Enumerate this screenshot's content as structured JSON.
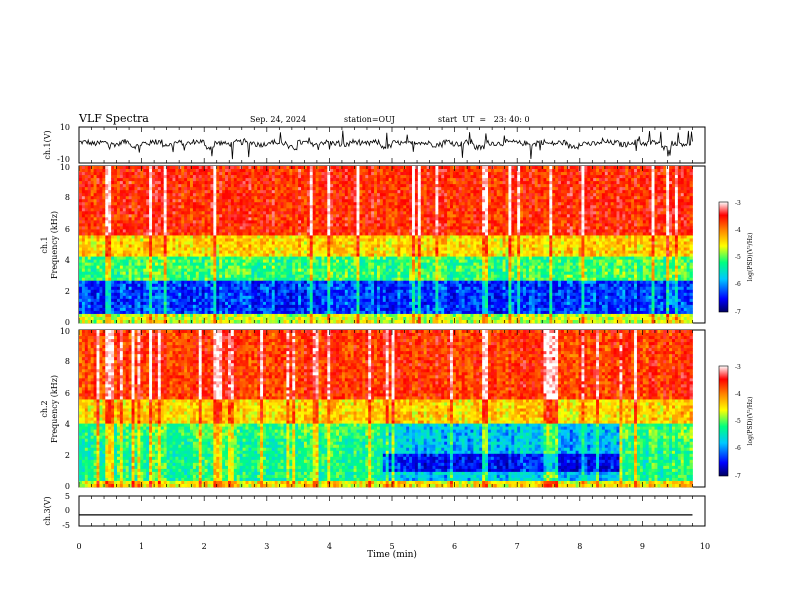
{
  "header": {
    "title": "VLF Spectra",
    "date": "Sep. 24, 2024",
    "station": "station=OUJ",
    "start": "start  UT  =   23: 40: 0"
  },
  "chart_data": [
    {
      "type": "line",
      "panel": "waveform-ch1",
      "ylabel": "ch.1(V)",
      "ylim": [
        -10,
        10
      ],
      "y_ticks": [
        "10",
        "-10"
      ],
      "series": [
        {
          "values": [
            3.2,
            1.5,
            2.8,
            0.9,
            3.6,
            -1.2,
            2.1,
            3.4,
            0.4,
            2.6,
            1.8,
            3.9,
            -2.4,
            2.2,
            1.1,
            3.1,
            2.5,
            0.7,
            3.3,
            1.9,
            -3.1,
            2.7,
            1.4,
            3.0,
            2.2,
            0.2,
            3.5,
            1.6,
            2.9,
            -1.8,
            2.4,
            1.2,
            3.2,
            2.0,
            0.5,
            3.7,
            1.3,
            2.8,
            -2.9,
            2.3,
            1.7,
            3.0,
            2.1,
            0.8,
            3.4,
            1.5,
            2.6,
            -1.5,
            2.0,
            1.0,
            3.1,
            2.4,
            0.6,
            3.3,
            1.8,
            2.7,
            -3.5,
            2.2,
            1.4,
            3.6
          ]
        }
      ]
    },
    {
      "type": "heatmap",
      "panel": "spectrogram-ch1",
      "ylabel": "ch.1\nFrequency  (kHz)",
      "ylim": [
        0,
        10
      ],
      "y_ticks": [
        "0",
        "2",
        "4",
        "6",
        "8",
        "10"
      ],
      "colorbar": {
        "label": "log(PSD)(V²/Hz)",
        "range": [
          -7,
          -3
        ],
        "ticks": [
          "-3",
          "-4",
          "-5",
          "-6",
          "-7"
        ]
      }
    },
    {
      "type": "heatmap",
      "panel": "spectrogram-ch2",
      "ylabel": "ch.2\nFrequency  (kHz)",
      "ylim": [
        0,
        10
      ],
      "y_ticks": [
        "0",
        "2",
        "4",
        "6",
        "8",
        "10"
      ],
      "colorbar": {
        "label": "log(PSD)(V²/Hz)",
        "range": [
          -7,
          -3
        ],
        "ticks": [
          "-3",
          "-4",
          "-5",
          "-6",
          "-7"
        ]
      }
    },
    {
      "type": "line",
      "panel": "waveform-ch3",
      "ylabel": "ch.3(V)",
      "ylim": [
        -5,
        5
      ],
      "y_ticks": [
        "5",
        "0",
        "-5"
      ],
      "series": [
        {
          "values": [
            -1.3,
            -1.3
          ]
        }
      ]
    }
  ],
  "x_axis": {
    "label": "Time  (min)",
    "range": [
      0,
      10
    ],
    "ticks": [
      "0",
      "1",
      "2",
      "3",
      "4",
      "5",
      "6",
      "7",
      "8",
      "9",
      "10"
    ],
    "data_end": 9.8
  },
  "colors": {
    "colormap": [
      "#000080",
      "#0000ff",
      "#00c8ff",
      "#00ff80",
      "#ffff00",
      "#ff8000",
      "#ff0000",
      "#ffffff"
    ]
  }
}
